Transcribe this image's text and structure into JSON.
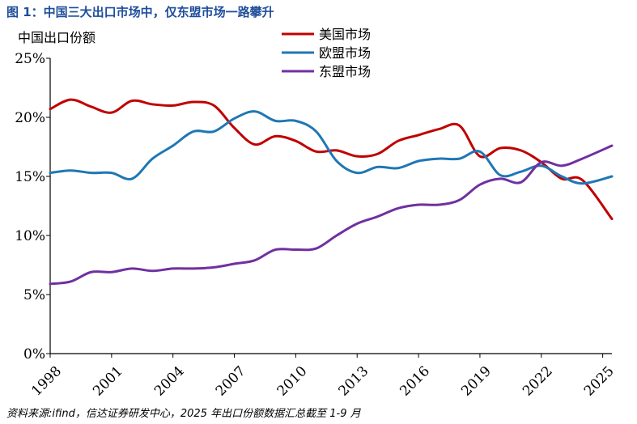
{
  "header": {
    "title": "图 1：中国三大出口市场中，仅东盟市场一路攀升"
  },
  "footnote": "资料来源:ifind，信达证券研发中心，2025 年出口份额数据汇总截至 1-9 月",
  "chart_data": {
    "type": "line",
    "ylabel": "中国出口份额",
    "xlabel": "",
    "xlim": [
      1998,
      2025
    ],
    "ylim": [
      0,
      25
    ],
    "x_ticks": [
      "1998",
      "2001",
      "2004",
      "2007",
      "2010",
      "2013",
      "2016",
      "2019",
      "2022",
      "2025"
    ],
    "y_ticks": [
      "0%",
      "5%",
      "10%",
      "15%",
      "20%",
      "25%"
    ],
    "grid": false,
    "legend_position": "top-right",
    "x": [
      1998,
      1999,
      2000,
      2001,
      2002,
      2003,
      2004,
      2005,
      2006,
      2007,
      2008,
      2009,
      2010,
      2011,
      2012,
      2013,
      2014,
      2015,
      2016,
      2017,
      2018,
      2019,
      2020,
      2021,
      2022,
      2023,
      2024,
      2025
    ],
    "series": [
      {
        "name": "美国市场",
        "color": "#c00000",
        "values": [
          20.7,
          21.5,
          20.9,
          20.4,
          21.4,
          21.1,
          21.0,
          21.3,
          21.0,
          19.1,
          17.7,
          18.4,
          18.0,
          17.1,
          17.2,
          16.7,
          16.9,
          18.0,
          18.5,
          19.0,
          19.3,
          16.7,
          17.4,
          17.2,
          16.2,
          14.8,
          14.7,
          11.4
        ]
      },
      {
        "name": "欧盟市场",
        "color": "#1f77b4",
        "values": [
          15.3,
          15.5,
          15.3,
          15.3,
          14.8,
          16.5,
          17.6,
          18.8,
          18.8,
          19.9,
          20.5,
          19.7,
          19.7,
          18.8,
          16.3,
          15.3,
          15.8,
          15.7,
          16.3,
          16.5,
          16.5,
          17.1,
          15.1,
          15.4,
          15.9,
          15.0,
          14.4,
          15.0
        ]
      },
      {
        "name": "东盟市场",
        "color": "#7030a0",
        "values": [
          5.9,
          6.1,
          6.9,
          6.9,
          7.2,
          7.0,
          7.2,
          7.2,
          7.3,
          7.6,
          7.9,
          8.8,
          8.8,
          8.9,
          10.0,
          11.0,
          11.6,
          12.3,
          12.6,
          12.6,
          13.0,
          14.3,
          14.8,
          14.5,
          16.2,
          15.9,
          16.5,
          17.6
        ]
      }
    ]
  }
}
